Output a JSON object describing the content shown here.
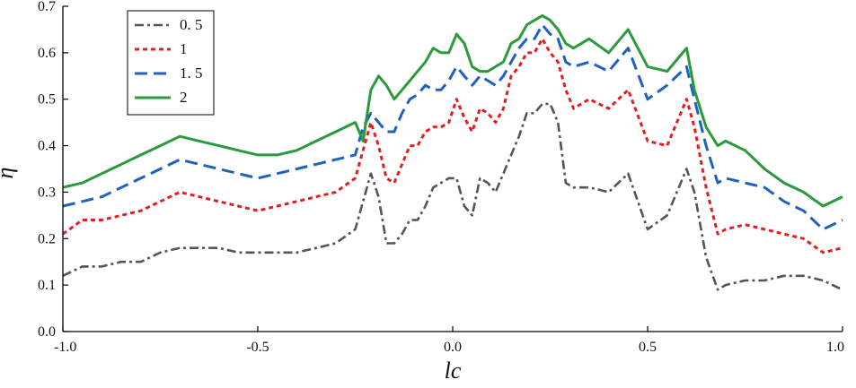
{
  "chart_data": {
    "type": "line",
    "title": "",
    "xlabel": "lc",
    "ylabel": "η",
    "xlim": [
      -1.0,
      1.0
    ],
    "ylim": [
      0.0,
      0.7
    ],
    "xticks": [
      "-1.0",
      "-0.5",
      "0.0",
      "0.5",
      "1.0"
    ],
    "yticks": [
      "0.0",
      "0.1",
      "0.2",
      "0.3",
      "0.4",
      "0.5",
      "0.6",
      "0.7"
    ],
    "grid": false,
    "legend_position": "top-left",
    "series": [
      {
        "name": "0. 5",
        "color": "#555555",
        "dash": "dashdot",
        "x": [
          -1.0,
          -0.95,
          -0.9,
          -0.85,
          -0.8,
          -0.75,
          -0.7,
          -0.65,
          -0.6,
          -0.55,
          -0.5,
          -0.45,
          -0.4,
          -0.35,
          -0.3,
          -0.25,
          -0.23,
          -0.21,
          -0.19,
          -0.17,
          -0.15,
          -0.13,
          -0.11,
          -0.09,
          -0.07,
          -0.05,
          -0.03,
          -0.01,
          0.01,
          0.03,
          0.05,
          0.07,
          0.09,
          0.11,
          0.13,
          0.15,
          0.17,
          0.19,
          0.21,
          0.23,
          0.25,
          0.27,
          0.29,
          0.31,
          0.35,
          0.4,
          0.45,
          0.5,
          0.55,
          0.6,
          0.62,
          0.65,
          0.68,
          0.7,
          0.75,
          0.8,
          0.85,
          0.9,
          0.95,
          1.0
        ],
        "y": [
          0.12,
          0.14,
          0.14,
          0.15,
          0.15,
          0.17,
          0.18,
          0.18,
          0.18,
          0.17,
          0.17,
          0.17,
          0.17,
          0.18,
          0.19,
          0.22,
          0.28,
          0.34,
          0.29,
          0.19,
          0.19,
          0.21,
          0.24,
          0.24,
          0.27,
          0.31,
          0.32,
          0.33,
          0.33,
          0.27,
          0.25,
          0.33,
          0.32,
          0.3,
          0.34,
          0.38,
          0.42,
          0.47,
          0.47,
          0.49,
          0.49,
          0.45,
          0.32,
          0.31,
          0.31,
          0.3,
          0.34,
          0.22,
          0.25,
          0.35,
          0.3,
          0.16,
          0.09,
          0.1,
          0.11,
          0.11,
          0.12,
          0.12,
          0.11,
          0.09
        ]
      },
      {
        "name": "1",
        "color": "#e02020",
        "dash": "dotted",
        "x": [
          -1.0,
          -0.95,
          -0.9,
          -0.85,
          -0.8,
          -0.75,
          -0.7,
          -0.65,
          -0.6,
          -0.55,
          -0.5,
          -0.45,
          -0.4,
          -0.35,
          -0.3,
          -0.25,
          -0.23,
          -0.21,
          -0.19,
          -0.17,
          -0.15,
          -0.13,
          -0.11,
          -0.09,
          -0.07,
          -0.05,
          -0.03,
          -0.01,
          0.01,
          0.03,
          0.05,
          0.07,
          0.09,
          0.11,
          0.13,
          0.15,
          0.17,
          0.19,
          0.21,
          0.23,
          0.25,
          0.27,
          0.29,
          0.31,
          0.35,
          0.4,
          0.45,
          0.5,
          0.55,
          0.6,
          0.62,
          0.65,
          0.68,
          0.7,
          0.75,
          0.8,
          0.85,
          0.9,
          0.95,
          1.0
        ],
        "y": [
          0.21,
          0.24,
          0.24,
          0.25,
          0.26,
          0.28,
          0.3,
          0.29,
          0.28,
          0.27,
          0.26,
          0.27,
          0.28,
          0.29,
          0.3,
          0.33,
          0.39,
          0.45,
          0.4,
          0.33,
          0.32,
          0.36,
          0.4,
          0.4,
          0.43,
          0.44,
          0.44,
          0.45,
          0.5,
          0.46,
          0.43,
          0.48,
          0.47,
          0.45,
          0.48,
          0.55,
          0.57,
          0.6,
          0.6,
          0.63,
          0.6,
          0.58,
          0.52,
          0.48,
          0.5,
          0.48,
          0.52,
          0.41,
          0.4,
          0.5,
          0.44,
          0.31,
          0.21,
          0.22,
          0.23,
          0.22,
          0.21,
          0.2,
          0.17,
          0.18
        ]
      },
      {
        "name": "1. 5",
        "color": "#2060c0",
        "dash": "dashed",
        "x": [
          -1.0,
          -0.95,
          -0.9,
          -0.85,
          -0.8,
          -0.75,
          -0.7,
          -0.65,
          -0.6,
          -0.55,
          -0.5,
          -0.45,
          -0.4,
          -0.35,
          -0.3,
          -0.25,
          -0.23,
          -0.21,
          -0.19,
          -0.17,
          -0.15,
          -0.13,
          -0.11,
          -0.09,
          -0.07,
          -0.05,
          -0.03,
          -0.01,
          0.01,
          0.03,
          0.05,
          0.07,
          0.09,
          0.11,
          0.13,
          0.15,
          0.17,
          0.19,
          0.21,
          0.23,
          0.25,
          0.27,
          0.29,
          0.31,
          0.35,
          0.4,
          0.45,
          0.5,
          0.55,
          0.6,
          0.62,
          0.65,
          0.68,
          0.7,
          0.75,
          0.8,
          0.85,
          0.9,
          0.95,
          1.0
        ],
        "y": [
          0.27,
          0.28,
          0.29,
          0.31,
          0.33,
          0.35,
          0.37,
          0.36,
          0.35,
          0.34,
          0.33,
          0.34,
          0.35,
          0.36,
          0.37,
          0.38,
          0.44,
          0.47,
          0.45,
          0.43,
          0.43,
          0.47,
          0.5,
          0.51,
          0.53,
          0.52,
          0.52,
          0.54,
          0.57,
          0.55,
          0.53,
          0.55,
          0.54,
          0.53,
          0.55,
          0.58,
          0.61,
          0.63,
          0.63,
          0.66,
          0.64,
          0.63,
          0.58,
          0.57,
          0.58,
          0.56,
          0.61,
          0.5,
          0.53,
          0.57,
          0.5,
          0.4,
          0.32,
          0.33,
          0.32,
          0.31,
          0.28,
          0.26,
          0.22,
          0.24
        ]
      },
      {
        "name": "2",
        "color": "#2a9a3a",
        "dash": "solid",
        "x": [
          -1.0,
          -0.95,
          -0.9,
          -0.85,
          -0.8,
          -0.75,
          -0.7,
          -0.65,
          -0.6,
          -0.55,
          -0.5,
          -0.45,
          -0.4,
          -0.35,
          -0.3,
          -0.25,
          -0.23,
          -0.21,
          -0.19,
          -0.17,
          -0.15,
          -0.13,
          -0.11,
          -0.09,
          -0.07,
          -0.05,
          -0.03,
          -0.01,
          0.01,
          0.03,
          0.05,
          0.07,
          0.09,
          0.11,
          0.13,
          0.15,
          0.17,
          0.19,
          0.21,
          0.23,
          0.25,
          0.27,
          0.29,
          0.31,
          0.35,
          0.4,
          0.45,
          0.5,
          0.55,
          0.6,
          0.62,
          0.65,
          0.68,
          0.7,
          0.75,
          0.8,
          0.85,
          0.9,
          0.95,
          1.0
        ],
        "y": [
          0.31,
          0.32,
          0.34,
          0.36,
          0.38,
          0.4,
          0.42,
          0.41,
          0.4,
          0.39,
          0.38,
          0.38,
          0.39,
          0.41,
          0.43,
          0.45,
          0.41,
          0.52,
          0.55,
          0.53,
          0.5,
          0.52,
          0.54,
          0.56,
          0.58,
          0.61,
          0.6,
          0.6,
          0.64,
          0.62,
          0.57,
          0.56,
          0.56,
          0.57,
          0.58,
          0.62,
          0.63,
          0.66,
          0.67,
          0.68,
          0.67,
          0.65,
          0.62,
          0.61,
          0.63,
          0.6,
          0.65,
          0.57,
          0.56,
          0.61,
          0.52,
          0.44,
          0.4,
          0.41,
          0.39,
          0.35,
          0.32,
          0.3,
          0.27,
          0.29
        ]
      }
    ]
  }
}
